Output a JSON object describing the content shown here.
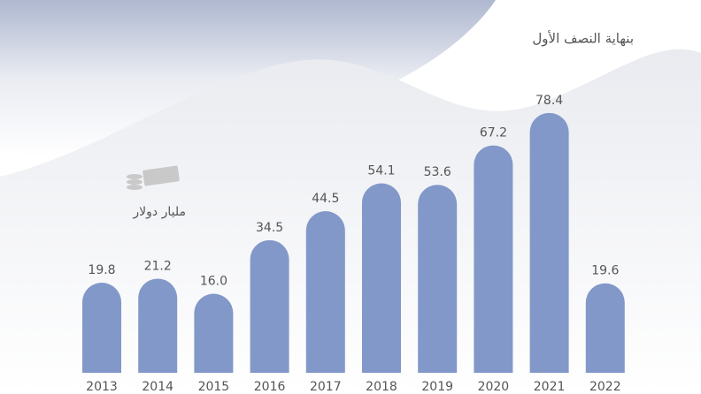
{
  "chart_data": {
    "type": "bar",
    "subtitle": "بنهاية النصف الأول",
    "unit_label": "مليار دولار",
    "categories": [
      "2013",
      "2014",
      "2015",
      "2016",
      "2017",
      "2018",
      "2019",
      "2020",
      "2021",
      "2022"
    ],
    "values": [
      19.8,
      21.2,
      16.0,
      34.5,
      44.5,
      54.1,
      53.6,
      67.2,
      78.4,
      19.6
    ],
    "value_labels": [
      "19.8",
      "21.2",
      "16.0",
      "34.5",
      "44.5",
      "54.1",
      "53.6",
      "67.2",
      "78.4",
      "19.6"
    ],
    "color": "#8298c9"
  }
}
